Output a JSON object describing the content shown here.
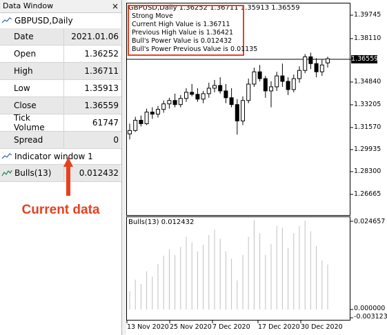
{
  "data_window": {
    "title": "Data Window",
    "close_glyph": "×",
    "symbol": "GBPUSD,Daily",
    "rows": [
      {
        "label": "Date",
        "value": "2021.01.06"
      },
      {
        "label": "Open",
        "value": "1.36252"
      },
      {
        "label": "High",
        "value": "1.36711"
      },
      {
        "label": "Low",
        "value": "1.35913"
      },
      {
        "label": "Close",
        "value": "1.36559"
      },
      {
        "label": "Tick Volume",
        "value": "61747"
      },
      {
        "label": "Spread",
        "value": "0"
      }
    ],
    "indicator_window": "Indicator window 1",
    "bulls_label": "Bulls(13)",
    "bulls_value": "0.012432"
  },
  "annotation": {
    "text": "Current data",
    "color": "#e8401f"
  },
  "chart": {
    "header": "GBPUSD,Daily  1.36252 1.36711 1.35913 1.36559",
    "comment_lines": [
      "Strong Move",
      "Current High Value is 1.36711",
      "Previous High Value is 1.36421",
      "Bull's Power Value is 0.012432",
      "Bull's Power Previous Value is 0.01135"
    ],
    "price_tag": "1.36559",
    "price_scale": [
      "1.39745",
      "1.38110",
      "1.36559",
      "1.34840",
      "1.33205",
      "1.31570",
      "1.29935",
      "1.28300",
      "1.26665"
    ],
    "subwindow_label": "Bulls(13) 0.012432",
    "sub_scale_top": "0.024657",
    "sub_scale_zero": "0.000000",
    "sub_scale_bottom": "-0.003123",
    "date_axis": [
      "13 Nov 2020",
      "25 Nov 2020",
      "7 Dec 2020",
      "17 Dec 2020",
      "30 Dec 2020"
    ]
  },
  "chart_data": {
    "type": "candlestick",
    "symbol": "GBPUSD",
    "timeframe": "Daily",
    "ylim": [
      1.26,
      1.405
    ],
    "candles": [
      {
        "o": 1.3105,
        "h": 1.318,
        "l": 1.3065,
        "c": 1.313
      },
      {
        "o": 1.313,
        "h": 1.323,
        "l": 1.312,
        "c": 1.3205
      },
      {
        "o": 1.3205,
        "h": 1.324,
        "l": 1.316,
        "c": 1.318
      },
      {
        "o": 1.318,
        "h": 1.329,
        "l": 1.317,
        "c": 1.3265
      },
      {
        "o": 1.3265,
        "h": 1.33,
        "l": 1.3215,
        "c": 1.325
      },
      {
        "o": 1.325,
        "h": 1.331,
        "l": 1.3225,
        "c": 1.3285
      },
      {
        "o": 1.3285,
        "h": 1.335,
        "l": 1.326,
        "c": 1.3325
      },
      {
        "o": 1.3325,
        "h": 1.337,
        "l": 1.329,
        "c": 1.335
      },
      {
        "o": 1.335,
        "h": 1.34,
        "l": 1.33,
        "c": 1.332
      },
      {
        "o": 1.332,
        "h": 1.339,
        "l": 1.33,
        "c": 1.3365
      },
      {
        "o": 1.3365,
        "h": 1.344,
        "l": 1.334,
        "c": 1.341
      },
      {
        "o": 1.341,
        "h": 1.347,
        "l": 1.338,
        "c": 1.3395
      },
      {
        "o": 1.3395,
        "h": 1.344,
        "l": 1.334,
        "c": 1.336
      },
      {
        "o": 1.336,
        "h": 1.342,
        "l": 1.333,
        "c": 1.34
      },
      {
        "o": 1.34,
        "h": 1.348,
        "l": 1.337,
        "c": 1.344
      },
      {
        "o": 1.344,
        "h": 1.35,
        "l": 1.341,
        "c": 1.346
      },
      {
        "o": 1.346,
        "h": 1.352,
        "l": 1.34,
        "c": 1.342
      },
      {
        "o": 1.342,
        "h": 1.347,
        "l": 1.333,
        "c": 1.337
      },
      {
        "o": 1.337,
        "h": 1.344,
        "l": 1.33,
        "c": 1.332
      },
      {
        "o": 1.332,
        "h": 1.336,
        "l": 1.31,
        "c": 1.32
      },
      {
        "o": 1.32,
        "h": 1.338,
        "l": 1.317,
        "c": 1.335
      },
      {
        "o": 1.335,
        "h": 1.351,
        "l": 1.333,
        "c": 1.347
      },
      {
        "o": 1.347,
        "h": 1.359,
        "l": 1.345,
        "c": 1.356
      },
      {
        "o": 1.356,
        "h": 1.361,
        "l": 1.349,
        "c": 1.351
      },
      {
        "o": 1.351,
        "h": 1.353,
        "l": 1.337,
        "c": 1.342
      },
      {
        "o": 1.342,
        "h": 1.349,
        "l": 1.33,
        "c": 1.345
      },
      {
        "o": 1.345,
        "h": 1.356,
        "l": 1.342,
        "c": 1.353
      },
      {
        "o": 1.353,
        "h": 1.362,
        "l": 1.345,
        "c": 1.349
      },
      {
        "o": 1.349,
        "h": 1.352,
        "l": 1.339,
        "c": 1.343
      },
      {
        "o": 1.343,
        "h": 1.354,
        "l": 1.341,
        "c": 1.351
      },
      {
        "o": 1.351,
        "h": 1.36,
        "l": 1.348,
        "c": 1.357
      },
      {
        "o": 1.357,
        "h": 1.369,
        "l": 1.355,
        "c": 1.367
      },
      {
        "o": 1.367,
        "h": 1.37,
        "l": 1.358,
        "c": 1.362
      },
      {
        "o": 1.362,
        "h": 1.366,
        "l": 1.352,
        "c": 1.356
      },
      {
        "o": 1.356,
        "h": 1.365,
        "l": 1.353,
        "c": 1.361
      },
      {
        "o": 1.3625,
        "h": 1.3671,
        "l": 1.3591,
        "c": 1.3656
      }
    ],
    "bulls_power": [
      0.005,
      0.0082,
      0.007,
      0.0105,
      0.009,
      0.0125,
      0.0148,
      0.0165,
      0.015,
      0.0172,
      0.02,
      0.0185,
      0.016,
      0.0178,
      0.0205,
      0.022,
      0.0195,
      0.016,
      0.014,
      0.008,
      0.015,
      0.02,
      0.0246,
      0.021,
      0.015,
      0.018,
      0.023,
      0.0225,
      0.017,
      0.021,
      0.023,
      0.0245,
      0.0215,
      0.0175,
      0.0135,
      0.0124
    ]
  }
}
